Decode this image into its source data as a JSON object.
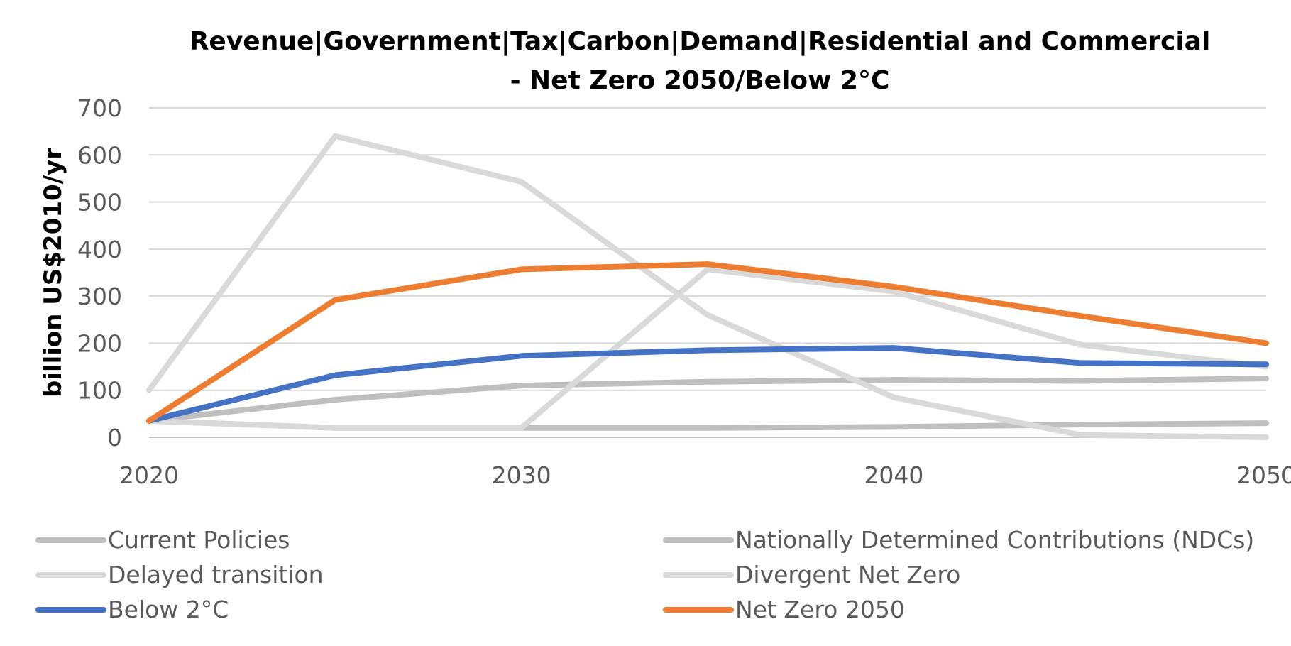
{
  "chart_data": {
    "type": "line",
    "title_lines": [
      "Revenue|Government|Tax|Carbon|Demand|Residential and Commercial",
      "- Net Zero 2050/Below 2°C"
    ],
    "xlabel": "",
    "ylabel": "billion US$2010/yr",
    "x": [
      2020,
      2025,
      2030,
      2035,
      2040,
      2045,
      2050
    ],
    "xticks": [
      "2020",
      "2030",
      "2040",
      "2050"
    ],
    "xlim": [
      2020,
      2050
    ],
    "yticks": [
      "0",
      "100",
      "200",
      "300",
      "400",
      "500",
      "600",
      "700"
    ],
    "ylim": [
      0,
      700
    ],
    "grid": true,
    "legend_position": "bottom",
    "series": [
      {
        "name": "Current Policies",
        "color": "#BFBFBF",
        "values": [
          35,
          20,
          20,
          20,
          22,
          27,
          30
        ]
      },
      {
        "name": "Nationally Determined Contributions (NDCs)",
        "color": "#BFBFBF",
        "values": [
          35,
          80,
          110,
          118,
          122,
          120,
          125
        ]
      },
      {
        "name": "Delayed transition",
        "color": "#D9D9D9",
        "values": [
          100,
          640,
          543,
          260,
          85,
          5,
          0
        ]
      },
      {
        "name": "Divergent Net Zero",
        "color": "#D9D9D9",
        "values": [
          35,
          20,
          20,
          357,
          310,
          197,
          150
        ]
      },
      {
        "name": "Below 2°C",
        "color": "#4472C4",
        "values": [
          35,
          132,
          173,
          185,
          190,
          158,
          155
        ]
      },
      {
        "name": "Net Zero 2050",
        "color": "#ED7D31",
        "values": [
          35,
          292,
          357,
          368,
          320,
          258,
          200
        ]
      }
    ]
  }
}
